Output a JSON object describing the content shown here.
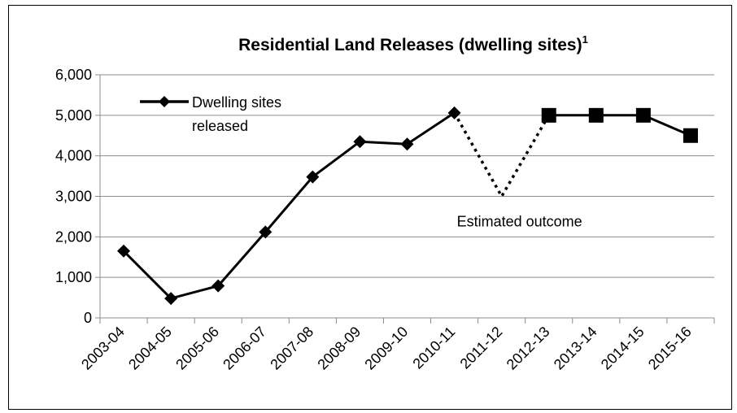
{
  "chart_data": {
    "type": "line",
    "title": "Residential Land Releases  (dwelling sites)",
    "title_superscript": "1",
    "categories": [
      "2003-04",
      "2004-05",
      "2005-06",
      "2006-07",
      "2007-08",
      "2008-09",
      "2009-10",
      "2010-11",
      "2011-12",
      "2012-13",
      "2013-14",
      "2014-15",
      "2015-16"
    ],
    "ylim": [
      0,
      6000
    ],
    "yticks": [
      "0",
      "1,000",
      "2,000",
      "3,000",
      "4,000",
      "5,000",
      "6,000"
    ],
    "grid": true,
    "legend_position": "top-left",
    "series": [
      {
        "name": "Dwelling sites released",
        "marker": "diamond",
        "line": "solid",
        "color": "#000000",
        "values": [
          1650,
          480,
          790,
          2120,
          3480,
          4350,
          4290,
          5060,
          null,
          null,
          null,
          null,
          null
        ]
      },
      {
        "marker": "none",
        "line": "dotted",
        "color": "#000000",
        "values": [
          null,
          null,
          null,
          null,
          null,
          null,
          null,
          5060,
          3000,
          5000,
          null,
          null,
          null
        ]
      },
      {
        "marker": "square",
        "line": "solid",
        "color": "#000000",
        "values": [
          null,
          null,
          null,
          null,
          null,
          null,
          null,
          null,
          null,
          5000,
          5000,
          5000,
          4500
        ]
      }
    ],
    "annotations": [
      {
        "text": "Estimated outcome",
        "x": "2011-12",
        "y": 3000
      }
    ]
  }
}
